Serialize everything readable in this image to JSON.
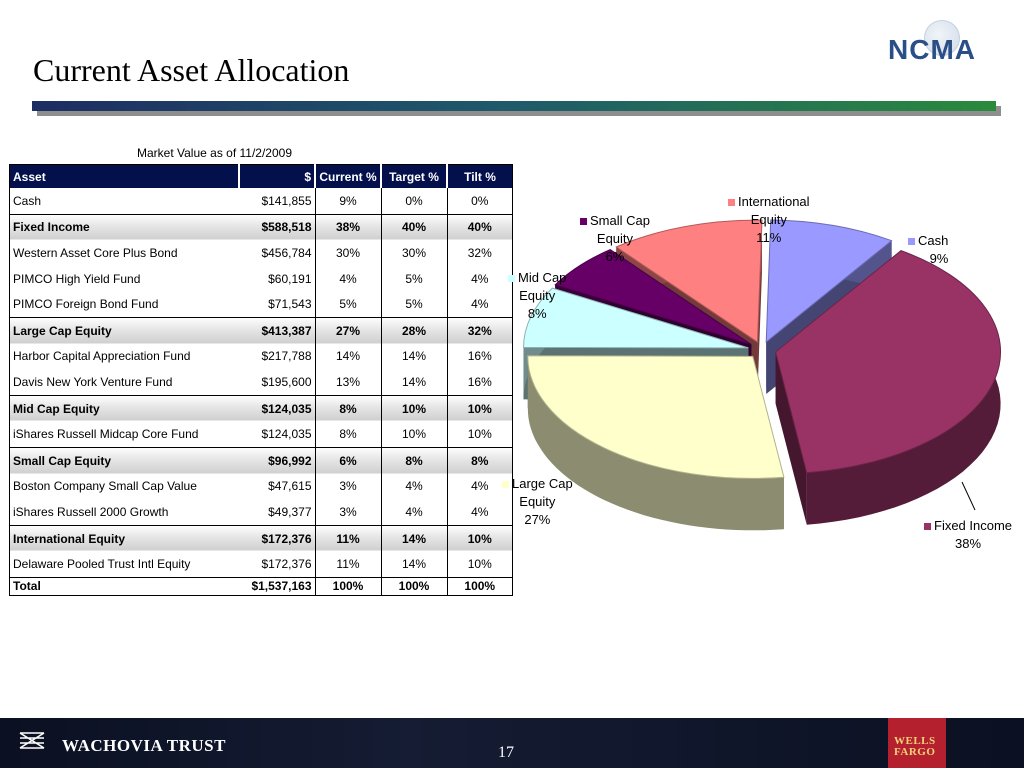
{
  "header": {
    "title": "Current Asset Allocation",
    "logo_text": "NCMA"
  },
  "table": {
    "market_value_label": "Market Value as of 11/2/2009",
    "headers": [
      "Asset",
      "$",
      "Current %",
      "Target %",
      "Tilt %"
    ],
    "rows": [
      {
        "asset": "Cash",
        "value": "$141,855",
        "current": "9%",
        "target": "0%",
        "tilt": "0%",
        "bold": false
      },
      {
        "asset": "Fixed Income",
        "value": "$588,518",
        "current": "38%",
        "target": "40%",
        "tilt": "40%",
        "bold": true
      },
      {
        "asset": "Western Asset Core Plus Bond",
        "value": "$456,784",
        "current": "30%",
        "target": "30%",
        "tilt": "32%",
        "bold": false
      },
      {
        "asset": "PIMCO High Yield Fund",
        "value": "$60,191",
        "current": "4%",
        "target": "5%",
        "tilt": "4%",
        "bold": false
      },
      {
        "asset": "PIMCO Foreign Bond Fund",
        "value": "$71,543",
        "current": "5%",
        "target": "5%",
        "tilt": "4%",
        "bold": false
      },
      {
        "asset": "Large Cap Equity",
        "value": "$413,387",
        "current": "27%",
        "target": "28%",
        "tilt": "32%",
        "bold": true
      },
      {
        "asset": "Harbor Capital Appreciation Fund",
        "value": "$217,788",
        "current": "14%",
        "target": "14%",
        "tilt": "16%",
        "bold": false
      },
      {
        "asset": "Davis New York Venture Fund",
        "value": "$195,600",
        "current": "13%",
        "target": "14%",
        "tilt": "16%",
        "bold": false
      },
      {
        "asset": "Mid Cap Equity",
        "value": "$124,035",
        "current": "8%",
        "target": "10%",
        "tilt": "10%",
        "bold": true
      },
      {
        "asset": "iShares Russell Midcap Core Fund",
        "value": "$124,035",
        "current": "8%",
        "target": "10%",
        "tilt": "10%",
        "bold": false
      },
      {
        "asset": "Small Cap Equity",
        "value": "$96,992",
        "current": "6%",
        "target": "8%",
        "tilt": "8%",
        "bold": true
      },
      {
        "asset": "Boston Company Small Cap Value",
        "value": "$47,615",
        "current": "3%",
        "target": "4%",
        "tilt": "4%",
        "bold": false
      },
      {
        "asset": "iShares Russell 2000 Growth",
        "value": "$49,377",
        "current": "3%",
        "target": "4%",
        "tilt": "4%",
        "bold": false
      },
      {
        "asset": "International Equity",
        "value": "$172,376",
        "current": "11%",
        "target": "14%",
        "tilt": "10%",
        "bold": true
      },
      {
        "asset": "Delaware Pooled Trust Intl Equity",
        "value": "$172,376",
        "current": "11%",
        "target": "14%",
        "tilt": "10%",
        "bold": false
      }
    ],
    "total": {
      "asset": "Total",
      "value": "$1,537,163",
      "current": "100%",
      "target": "100%",
      "tilt": "100%"
    }
  },
  "chart_data": {
    "type": "pie",
    "three_d": true,
    "slices": [
      {
        "label": "Cash",
        "percent_label": "9%",
        "value": 9,
        "color": "#9999ff"
      },
      {
        "label": "Fixed Income",
        "percent_label": "38%",
        "value": 38,
        "color": "#993366"
      },
      {
        "label": "Large Cap Equity",
        "percent_label": "27%",
        "value": 27,
        "color": "#ffffcc"
      },
      {
        "label": "Mid Cap Equity",
        "percent_label": "8%",
        "value": 8,
        "color": "#ccffff"
      },
      {
        "label": "Small Cap Equity",
        "percent_label": "6%",
        "value": 6,
        "color": "#660066"
      },
      {
        "label": "International Equity",
        "percent_label": "11%",
        "value": 11,
        "color": "#ff8080"
      }
    ]
  },
  "labels": {
    "international": [
      "International",
      "Equity",
      "11%"
    ],
    "small_cap": [
      "Small Cap",
      "Equity",
      "6%"
    ],
    "cash": [
      "Cash",
      "9%"
    ],
    "mid_cap": [
      "Mid Cap",
      "Equity",
      "8%"
    ],
    "large_cap": [
      "Large Cap",
      "Equity",
      "27%"
    ],
    "fixed_income": [
      "Fixed Income",
      "38%"
    ]
  },
  "footer": {
    "brand": "WACHOVIA TRUST",
    "page_number": "17",
    "wf_line1": "WELLS",
    "wf_line2": "FARGO"
  }
}
